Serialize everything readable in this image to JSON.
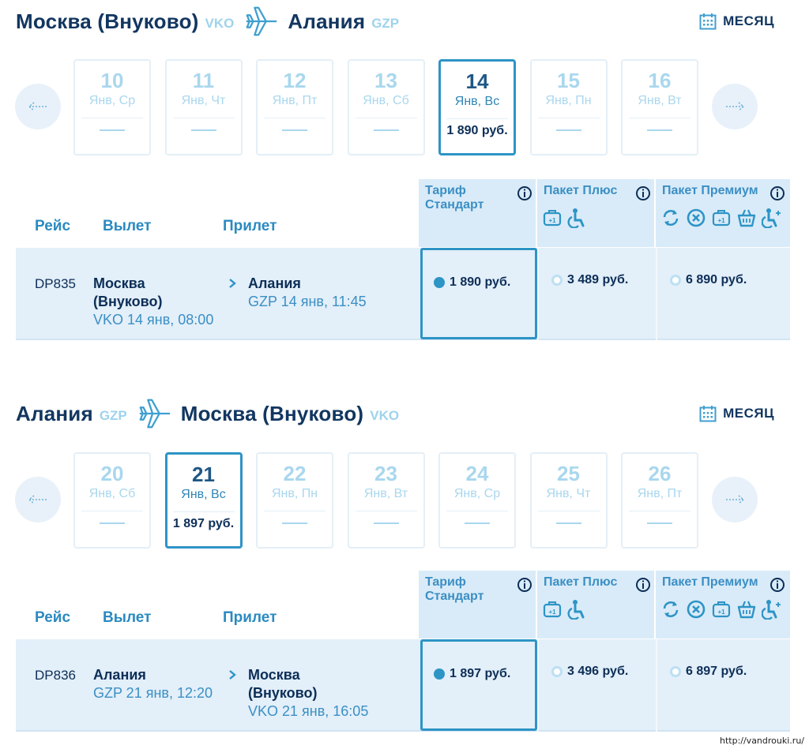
{
  "colors": {
    "accent": "#2d94c6",
    "dark": "#123660",
    "light": "#a9d7ee",
    "row_bg": "#e3eff9"
  },
  "month_label": "МЕСЯЦ",
  "columns": {
    "flight": "Рейс",
    "departure": "Вылет",
    "arrival": "Прилет"
  },
  "tariffs": {
    "standard": "Тариф Стандарт",
    "plus": "Пакет Плюс",
    "premium": "Пакет Премиум",
    "plus_icons": [
      "baggage-plus-one-icon",
      "accessibility-icon"
    ],
    "premium_icons": [
      "refresh-icon",
      "cancel-icon",
      "baggage-plus-one-icon",
      "shopping-bag-icon",
      "accessibility-plus-icon"
    ]
  },
  "outbound": {
    "from_city": "Москва (Внуково)",
    "from_code": "VKO",
    "to_city": "Алания",
    "to_code": "GZP",
    "dates": [
      {
        "day": "10",
        "weekday": "Янв, Ср",
        "price": "",
        "selected": false
      },
      {
        "day": "11",
        "weekday": "Янв, Чт",
        "price": "",
        "selected": false
      },
      {
        "day": "12",
        "weekday": "Янв, Пт",
        "price": "",
        "selected": false
      },
      {
        "day": "13",
        "weekday": "Янв, Сб",
        "price": "",
        "selected": false
      },
      {
        "day": "14",
        "weekday": "Янв, Вс",
        "price": "1 890 руб.",
        "selected": true
      },
      {
        "day": "15",
        "weekday": "Янв, Пн",
        "price": "",
        "selected": false
      },
      {
        "day": "16",
        "weekday": "Янв, Вт",
        "price": "",
        "selected": false
      }
    ],
    "flight": {
      "number": "DP835",
      "dep_city_1": "Москва",
      "dep_city_2": "(Внуково)",
      "dep_time": "VKO 14 янв, 08:00",
      "arr_city_1": "Алания",
      "arr_city_2": "",
      "arr_time": "GZP 14 янв, 11:45",
      "price_standard": "1 890 руб.",
      "price_plus": "3 489 руб.",
      "price_premium": "6 890 руб."
    }
  },
  "inbound": {
    "from_city": "Алания",
    "from_code": "GZP",
    "to_city": "Москва (Внуково)",
    "to_code": "VKO",
    "dates": [
      {
        "day": "20",
        "weekday": "Янв, Сб",
        "price": "",
        "selected": false
      },
      {
        "day": "21",
        "weekday": "Янв, Вс",
        "price": "1 897 руб.",
        "selected": true
      },
      {
        "day": "22",
        "weekday": "Янв, Пн",
        "price": "",
        "selected": false
      },
      {
        "day": "23",
        "weekday": "Янв, Вт",
        "price": "",
        "selected": false
      },
      {
        "day": "24",
        "weekday": "Янв, Ср",
        "price": "",
        "selected": false
      },
      {
        "day": "25",
        "weekday": "Янв, Чт",
        "price": "",
        "selected": false
      },
      {
        "day": "26",
        "weekday": "Янв, Пт",
        "price": "",
        "selected": false
      }
    ],
    "flight": {
      "number": "DP836",
      "dep_city_1": "Алания",
      "dep_city_2": "",
      "dep_time": "GZP 21 янв, 12:20",
      "arr_city_1": "Москва",
      "arr_city_2": "(Внуково)",
      "arr_time": "VKO 21 янв, 16:05",
      "price_standard": "1 897 руб.",
      "price_plus": "3 496 руб.",
      "price_premium": "6 897 руб."
    }
  },
  "watermark": "http://vandrouki.ru/"
}
